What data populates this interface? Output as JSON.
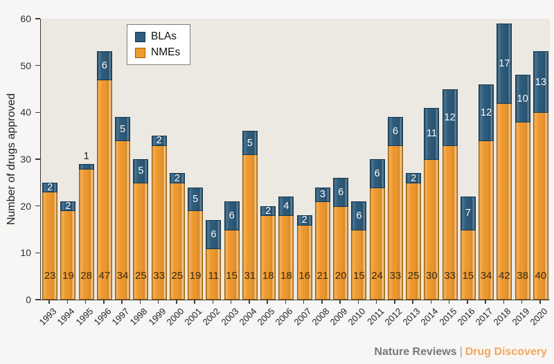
{
  "chart_data": {
    "type": "bar",
    "stacked": true,
    "categories": [
      "1993",
      "1994",
      "1995",
      "1996",
      "1997",
      "1998",
      "1999",
      "2000",
      "2001",
      "2002",
      "2003",
      "2004",
      "2005",
      "2006",
      "2007",
      "2008",
      "2009",
      "2010",
      "2011",
      "2012",
      "2013",
      "2014",
      "2015",
      "2016",
      "2017",
      "2018",
      "2019",
      "2020"
    ],
    "series": [
      {
        "name": "BLAs",
        "color": "#2e5d7d",
        "border_color": "#14394f",
        "label_color": "#ffffff",
        "values": [
          2,
          2,
          1,
          6,
          5,
          5,
          2,
          2,
          5,
          6,
          6,
          5,
          2,
          4,
          2,
          3,
          6,
          6,
          6,
          6,
          2,
          11,
          12,
          7,
          12,
          17,
          10,
          13
        ]
      },
      {
        "name": "NMEs",
        "color": "#f09b30",
        "border_color": "#92600d",
        "label_color": "#3b2a12",
        "values": [
          23,
          19,
          28,
          47,
          34,
          25,
          33,
          25,
          19,
          11,
          15,
          31,
          18,
          18,
          16,
          21,
          20,
          15,
          24,
          33,
          25,
          30,
          33,
          15,
          34,
          42,
          38,
          40
        ]
      }
    ],
    "title": "",
    "xlabel": "",
    "ylabel": "Number of drugs approved",
    "ylim": [
      0,
      60
    ],
    "yticks": [
      0,
      10,
      20,
      30,
      40,
      50,
      60
    ],
    "grid": false,
    "legend_position": "top-left-inside",
    "plot_background": "#ece9e3"
  },
  "footer": {
    "brand": "Nature Reviews",
    "separator": "|",
    "journal": "Drug Discovery",
    "brand_color": "#77787a",
    "journal_color": "#f0a85e"
  }
}
